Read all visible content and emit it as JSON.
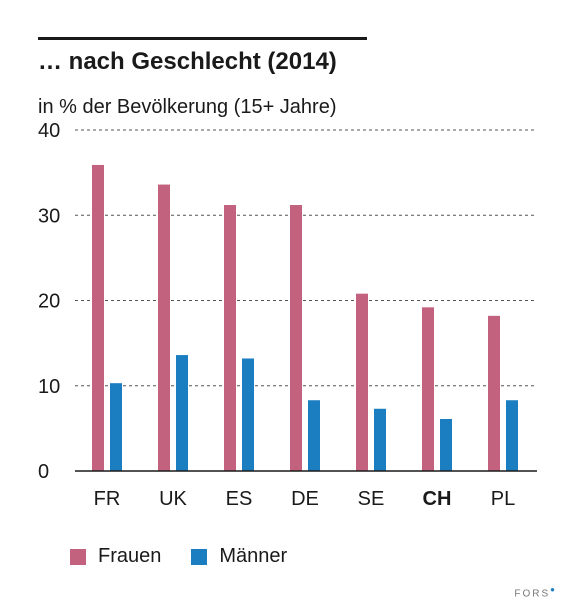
{
  "title": "… nach Geschlecht (2014)",
  "subtitle": "in % der Bevölkerung (15+ Jahre)",
  "credit": "FORS",
  "chart_data": {
    "type": "bar",
    "categories": [
      "FR",
      "UK",
      "ES",
      "DE",
      "SE",
      "CH",
      "PL"
    ],
    "highlight_category": "CH",
    "series": [
      {
        "name": "Frauen",
        "color": "#c2627f",
        "values": [
          35.9,
          33.6,
          31.2,
          31.2,
          20.8,
          19.2,
          18.2
        ]
      },
      {
        "name": "Männer",
        "color": "#1b7ec1",
        "values": [
          10.3,
          13.6,
          13.2,
          8.3,
          7.3,
          6.1,
          8.3
        ]
      }
    ],
    "ylim": [
      0,
      40
    ],
    "yticks": [
      0,
      10,
      20,
      30,
      40
    ],
    "grid": true,
    "legend_position": "bottom-left"
  }
}
